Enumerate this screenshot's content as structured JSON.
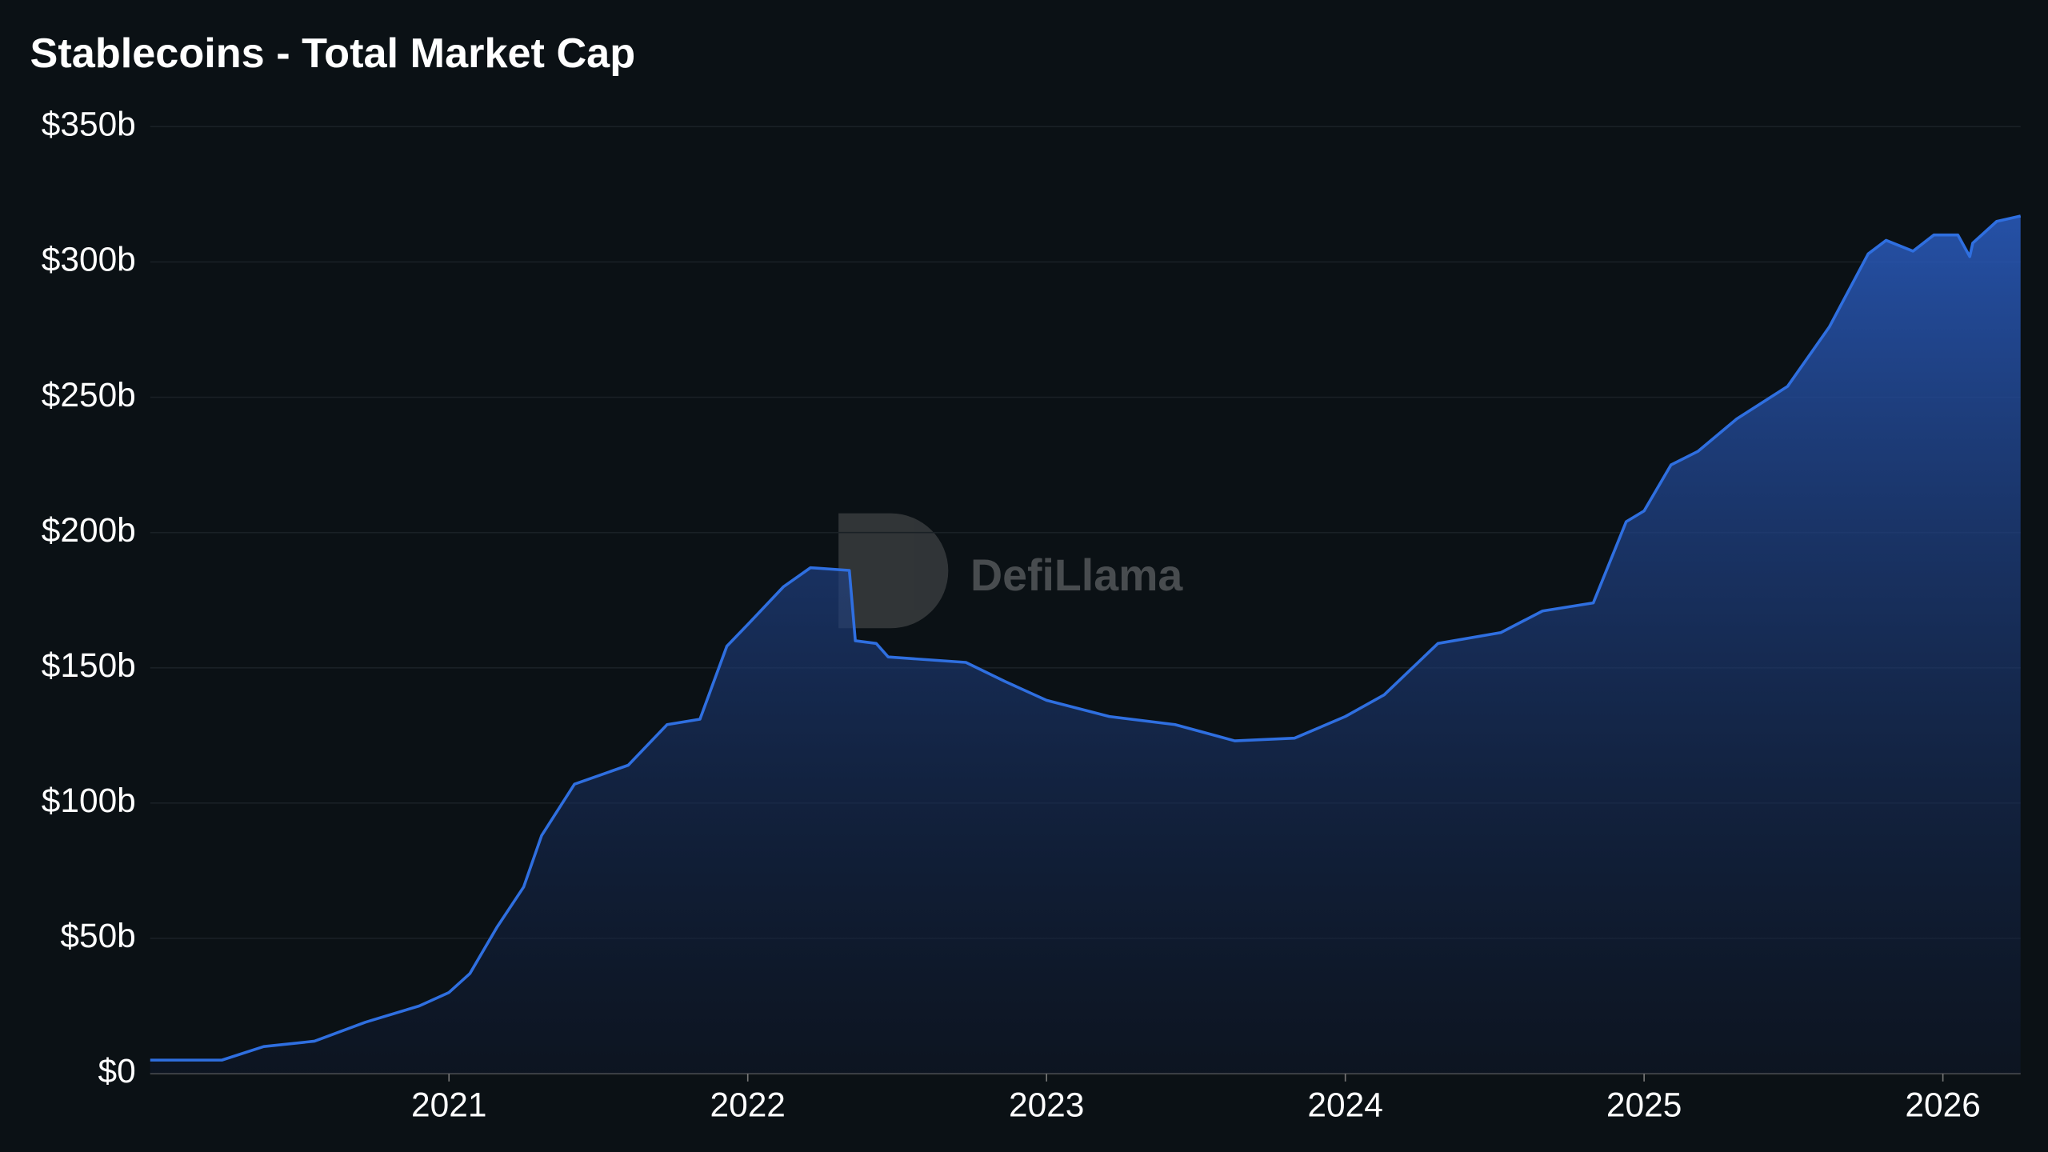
{
  "chart_data": {
    "type": "area",
    "title": "Stablecoins - Total Market Cap",
    "watermark": "DefiLlama",
    "x": [
      2020.0,
      2020.24,
      2020.38,
      2020.55,
      2020.72,
      2020.9,
      2021.0,
      2021.07,
      2021.16,
      2021.25,
      2021.31,
      2021.42,
      2021.6,
      2021.73,
      2021.84,
      2021.93,
      2022.0,
      2022.12,
      2022.21,
      2022.34,
      2022.36,
      2022.43,
      2022.47,
      2022.73,
      2022.86,
      2023.0,
      2023.21,
      2023.43,
      2023.63,
      2023.83,
      2024.0,
      2024.13,
      2024.31,
      2024.52,
      2024.66,
      2024.83,
      2024.94,
      2025.0,
      2025.09,
      2025.18,
      2025.31,
      2025.48,
      2025.62,
      2025.75,
      2025.81,
      2025.9,
      2025.97,
      2026.05,
      2026.09,
      2026.1,
      2026.18,
      2026.26
    ],
    "series": [
      {
        "color": "#2f6fe0",
        "values": [
          5,
          5,
          10,
          12,
          19,
          25,
          30,
          37,
          54,
          69,
          88,
          107,
          114,
          129,
          131,
          158,
          166,
          180,
          187,
          186,
          160,
          159,
          154,
          152,
          145,
          138,
          132,
          129,
          123,
          124,
          132,
          140,
          159,
          163,
          171,
          174,
          204,
          208,
          225,
          230,
          242,
          254,
          276,
          303,
          308,
          304,
          310,
          310,
          302,
          307,
          315,
          317
        ]
      }
    ],
    "xlim": [
      2020.0,
      2026.26
    ],
    "xticks": [
      2021,
      2022,
      2023,
      2024,
      2025,
      2026
    ],
    "ylim": [
      0,
      350
    ],
    "yticks": [
      {
        "value": 0,
        "label": "$0"
      },
      {
        "value": 50,
        "label": "$50b"
      },
      {
        "value": 100,
        "label": "$100b"
      },
      {
        "value": 150,
        "label": "$150b"
      },
      {
        "value": 200,
        "label": "$200b"
      },
      {
        "value": 250,
        "label": "$250b"
      },
      {
        "value": 300,
        "label": "$300b"
      },
      {
        "value": 350,
        "label": "$350b"
      }
    ],
    "grid": true
  }
}
